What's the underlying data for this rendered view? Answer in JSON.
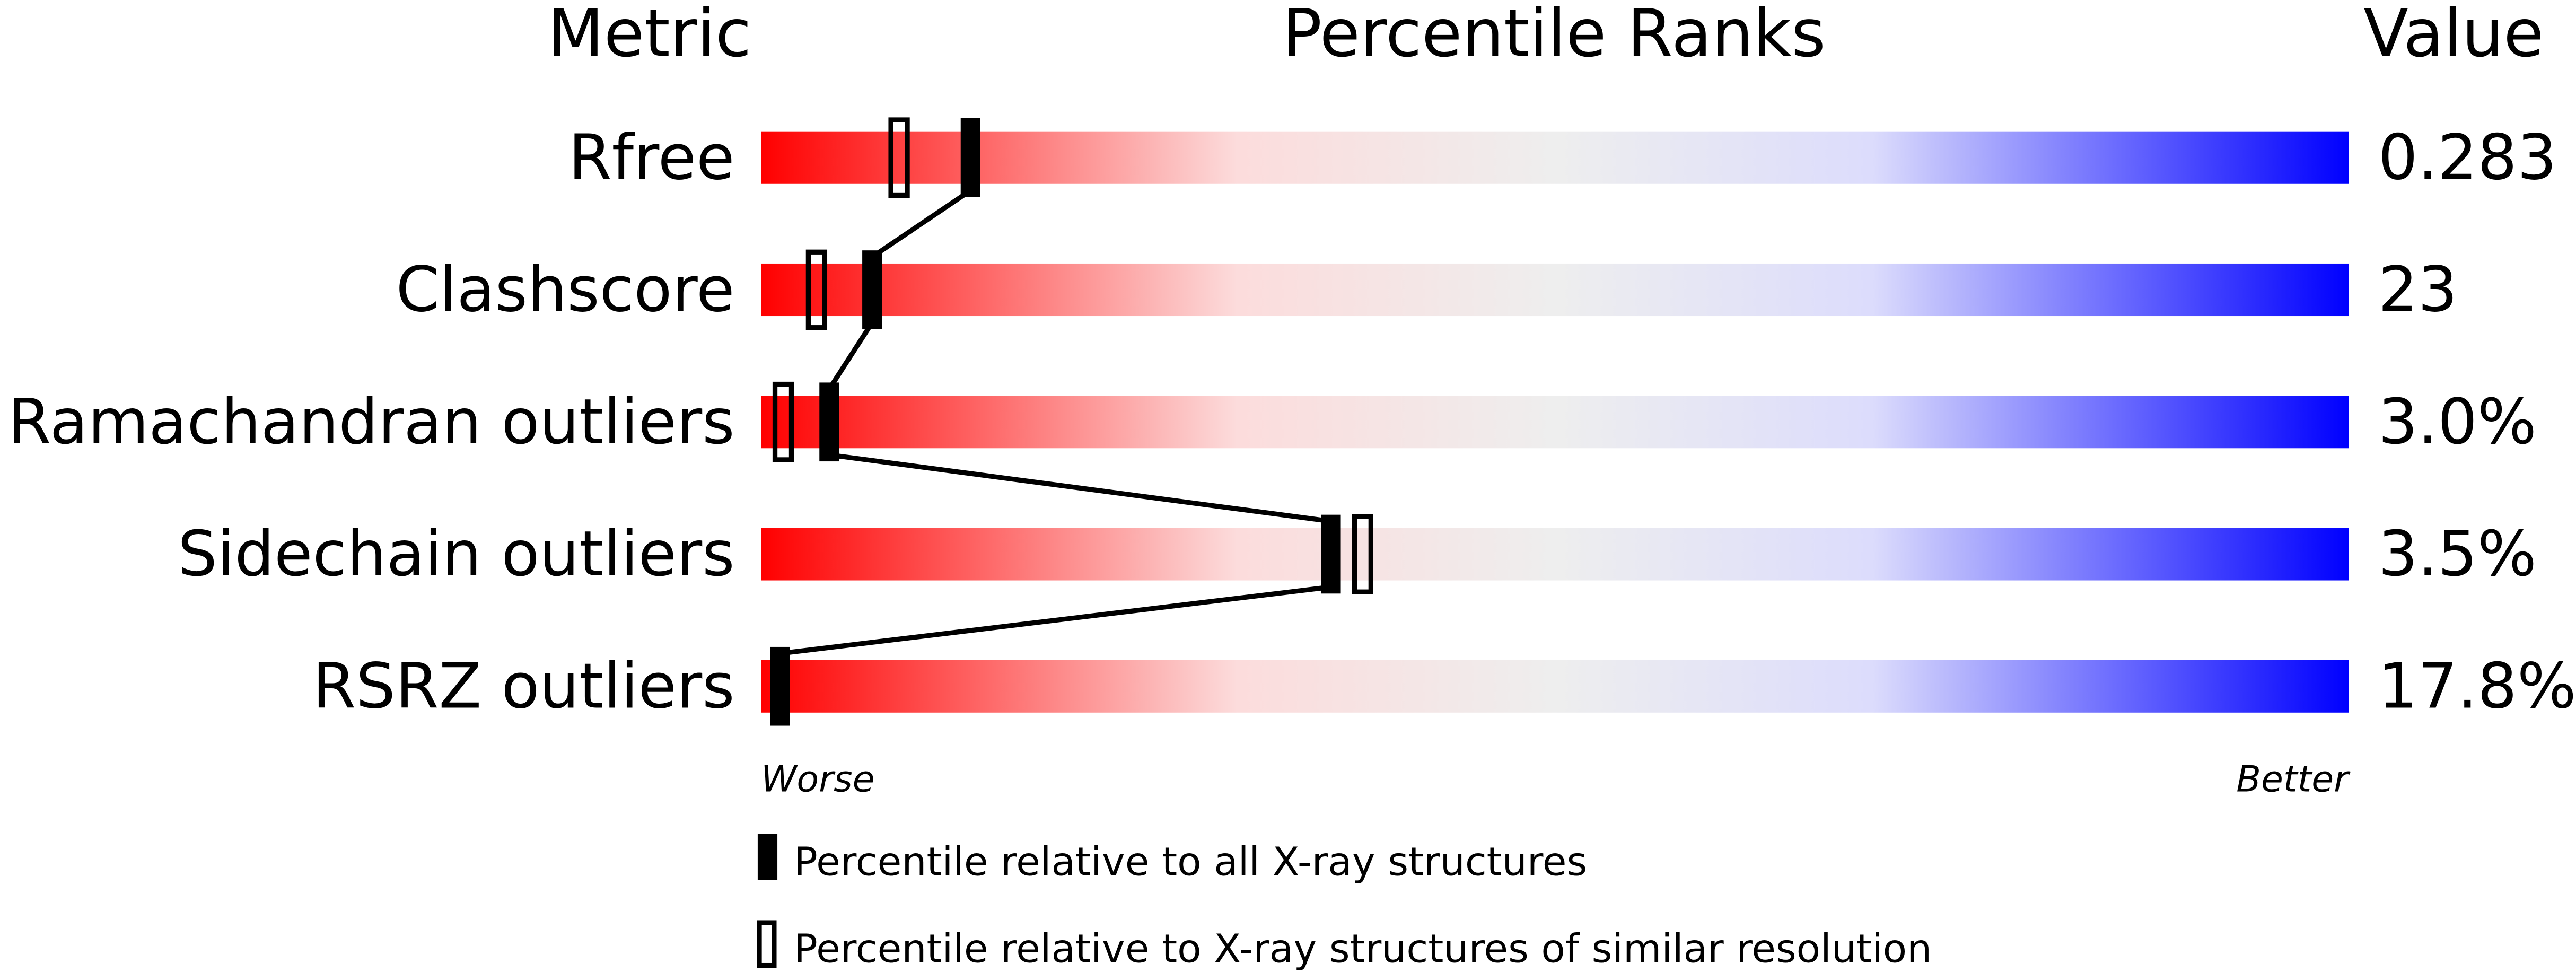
{
  "chart_data": {
    "type": "percentile-bar",
    "headers": {
      "metric": "Metric",
      "ranks": "Percentile Ranks",
      "value": "Value"
    },
    "xlim": [
      0,
      100
    ],
    "axis_labels": {
      "left": "Worse",
      "right": "Better"
    },
    "gradient_colors": [
      "#ff0000",
      "#fcdcdc",
      "#eeeeee",
      "#dcdcfc",
      "#0000ff"
    ],
    "rows": [
      {
        "metric": "Rfree",
        "value": "0.283",
        "percentile_all": 13.2,
        "percentile_similar": 8.7
      },
      {
        "metric": "Clashscore",
        "value": "23",
        "percentile_all": 7.0,
        "percentile_similar": 3.5
      },
      {
        "metric": "Ramachandran outliers",
        "value": "3.0%",
        "percentile_all": 4.3,
        "percentile_similar": 1.4
      },
      {
        "metric": "Sidechain outliers",
        "value": "3.5%",
        "percentile_all": 35.9,
        "percentile_similar": 37.9
      },
      {
        "metric": "RSRZ outliers",
        "value": "17.8%",
        "percentile_all": 1.2,
        "percentile_similar": null
      }
    ],
    "legend": [
      {
        "marker": "filled",
        "label": "Percentile relative to all X-ray structures"
      },
      {
        "marker": "open",
        "label": "Percentile relative to X-ray structures of similar resolution"
      }
    ]
  }
}
